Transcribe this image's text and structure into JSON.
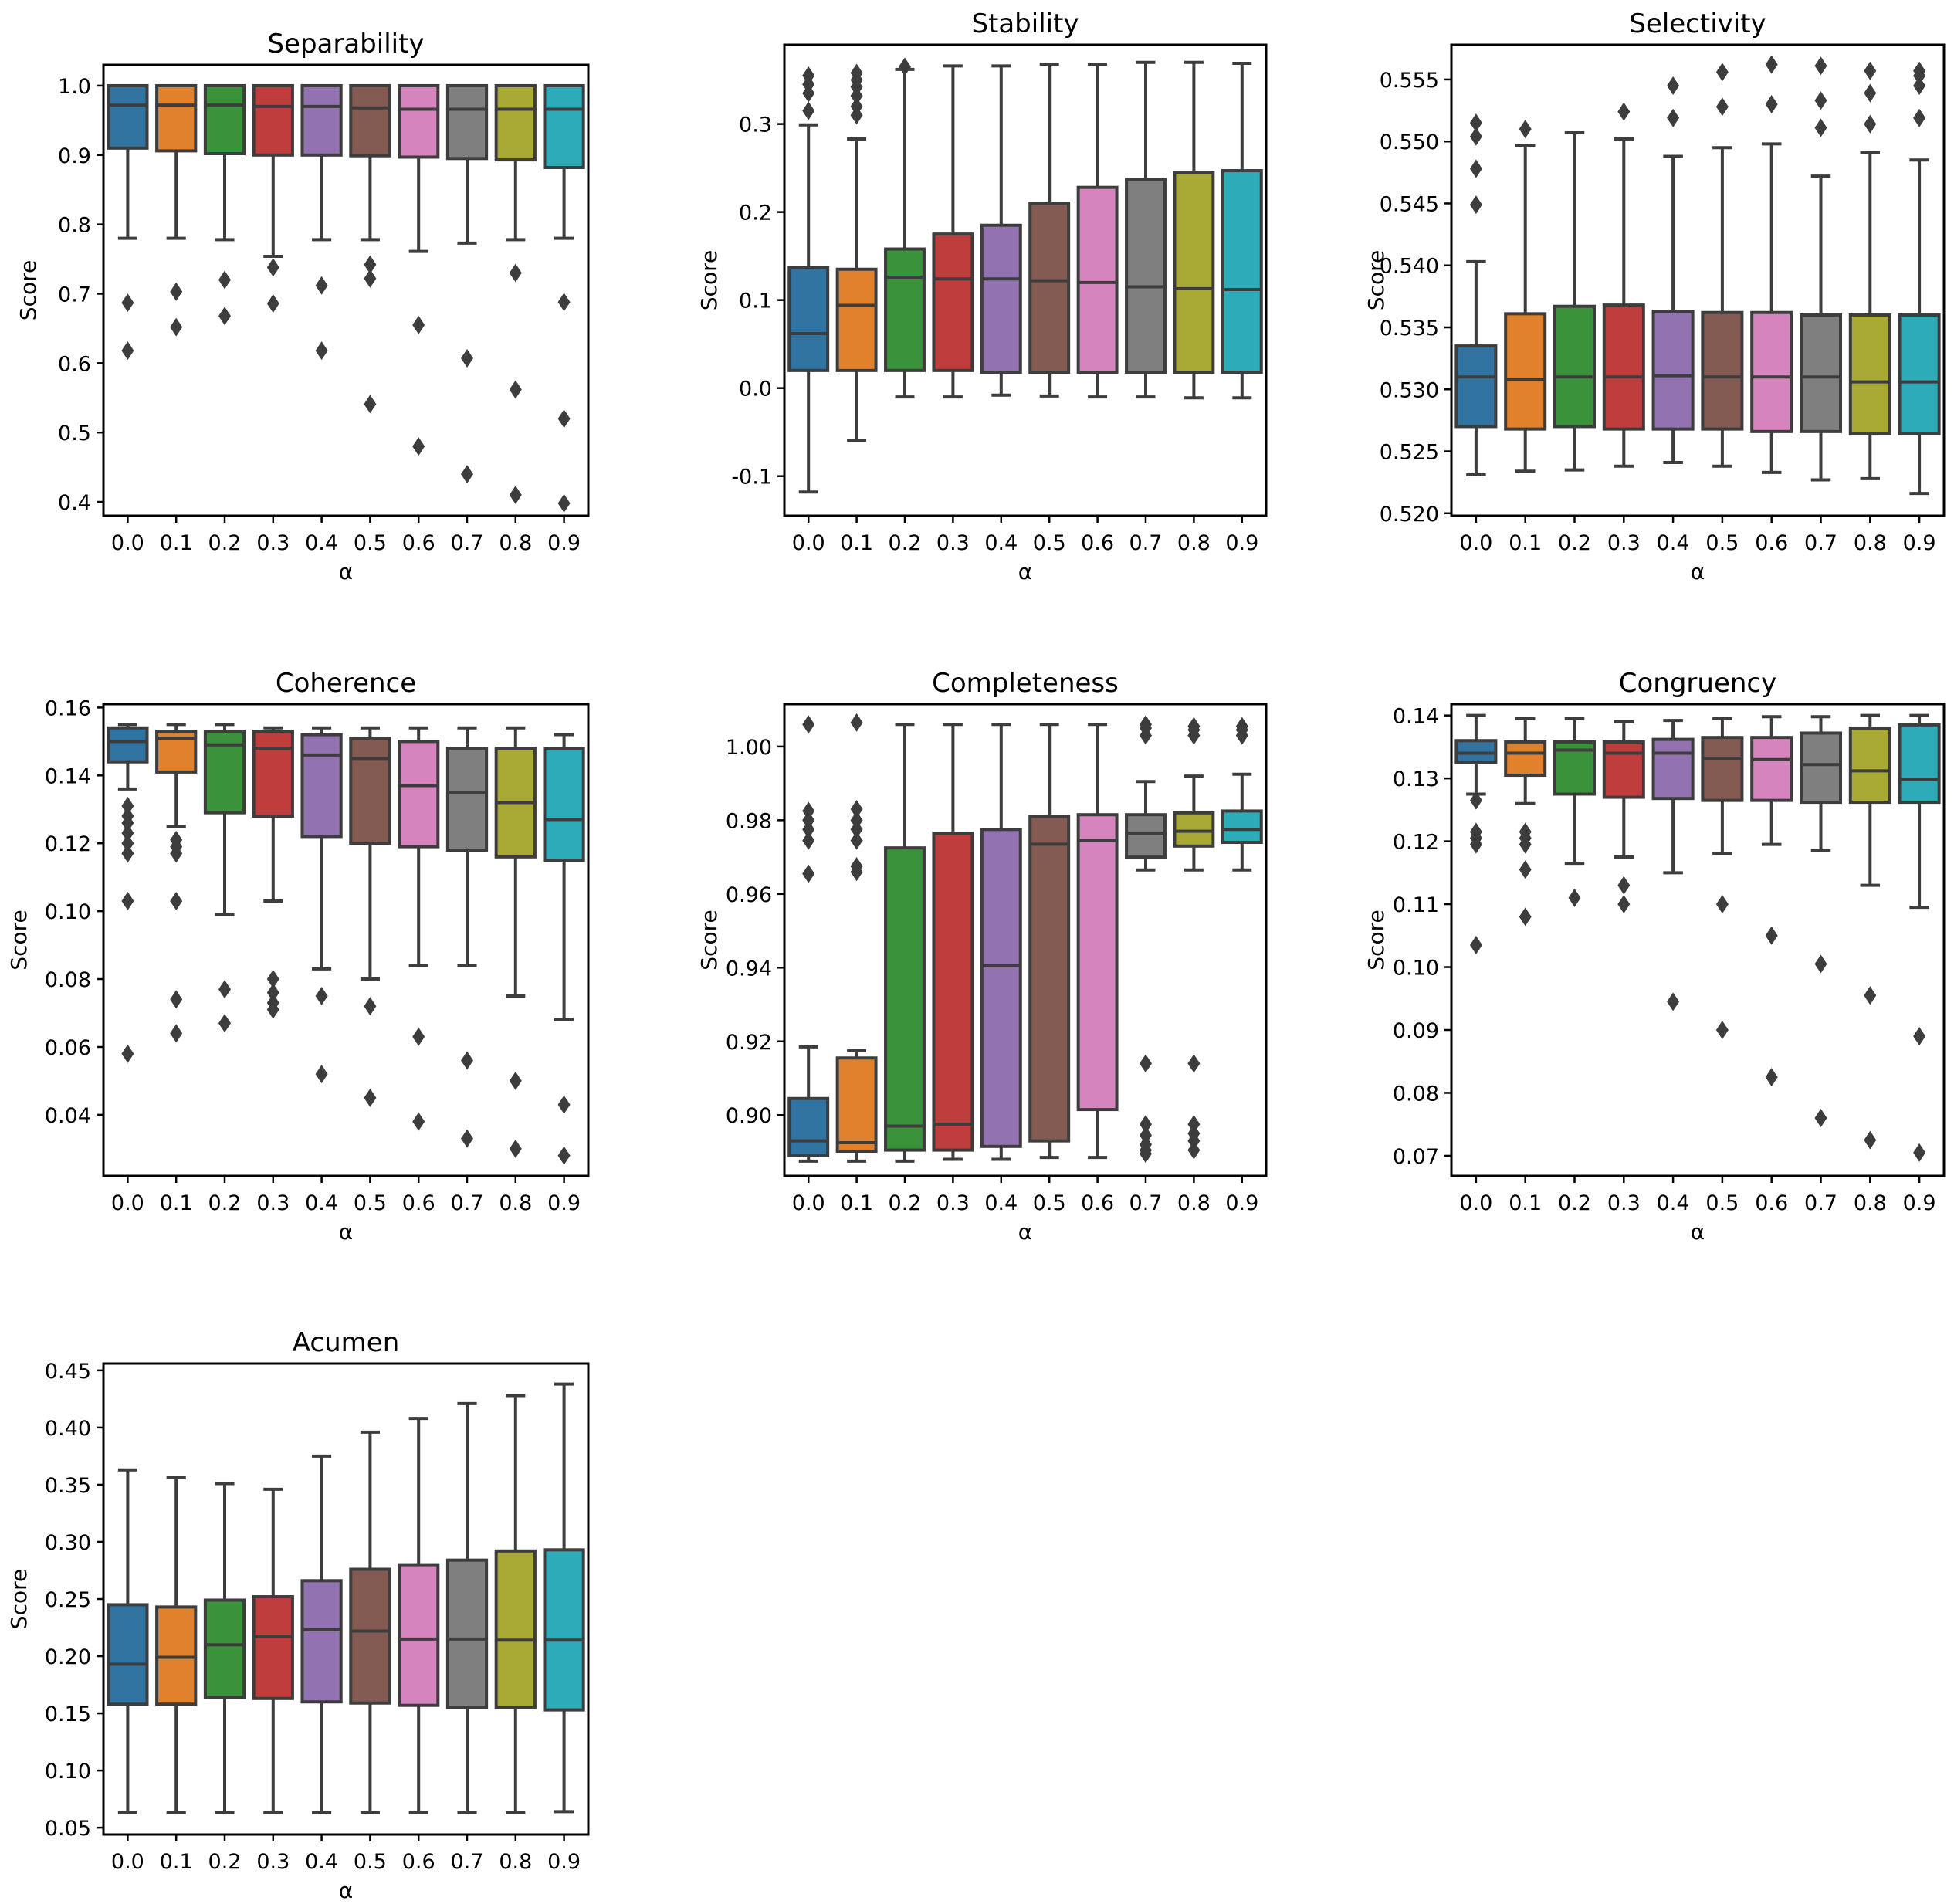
{
  "chart_data": [
    {
      "type": "box",
      "title": "Separability",
      "xlabel": "α",
      "ylabel": "Score",
      "categories": [
        "0.0",
        "0.1",
        "0.2",
        "0.3",
        "0.4",
        "0.5",
        "0.6",
        "0.7",
        "0.8",
        "0.9"
      ],
      "ylim": [
        0.38,
        1.03
      ],
      "yticks": [
        0.4,
        0.5,
        0.6,
        0.7,
        0.8,
        0.9,
        1.0
      ],
      "tick_decimals": 1,
      "boxes": [
        {
          "whislo": 0.78,
          "q1": 0.91,
          "med": 0.972,
          "q3": 1.0,
          "whishi": 1.0,
          "fliers": [
            0.687,
            0.618
          ]
        },
        {
          "whislo": 0.78,
          "q1": 0.906,
          "med": 0.972,
          "q3": 1.0,
          "whishi": 1.0,
          "fliers": [
            0.703,
            0.652
          ]
        },
        {
          "whislo": 0.778,
          "q1": 0.902,
          "med": 0.972,
          "q3": 1.0,
          "whishi": 1.0,
          "fliers": [
            0.72,
            0.668
          ]
        },
        {
          "whislo": 0.754,
          "q1": 0.9,
          "med": 0.97,
          "q3": 1.0,
          "whishi": 1.0,
          "fliers": [
            0.738,
            0.686
          ]
        },
        {
          "whislo": 0.778,
          "q1": 0.9,
          "med": 0.97,
          "q3": 1.0,
          "whishi": 1.0,
          "fliers": [
            0.712,
            0.618
          ]
        },
        {
          "whislo": 0.778,
          "q1": 0.899,
          "med": 0.968,
          "q3": 1.0,
          "whishi": 1.0,
          "fliers": [
            0.742,
            0.722,
            0.541
          ]
        },
        {
          "whislo": 0.761,
          "q1": 0.897,
          "med": 0.966,
          "q3": 1.0,
          "whishi": 1.0,
          "fliers": [
            0.655,
            0.48
          ]
        },
        {
          "whislo": 0.773,
          "q1": 0.895,
          "med": 0.966,
          "q3": 1.0,
          "whishi": 1.0,
          "fliers": [
            0.607,
            0.44
          ]
        },
        {
          "whislo": 0.778,
          "q1": 0.893,
          "med": 0.966,
          "q3": 1.0,
          "whishi": 1.0,
          "fliers": [
            0.73,
            0.562,
            0.41
          ]
        },
        {
          "whislo": 0.78,
          "q1": 0.882,
          "med": 0.966,
          "q3": 1.0,
          "whishi": 1.0,
          "fliers": [
            0.688,
            0.52,
            0.398
          ]
        }
      ]
    },
    {
      "type": "box",
      "title": "Stability",
      "xlabel": "α",
      "ylabel": "Score",
      "categories": [
        "0.0",
        "0.1",
        "0.2",
        "0.3",
        "0.4",
        "0.5",
        "0.6",
        "0.7",
        "0.8",
        "0.9"
      ],
      "ylim": [
        -0.145,
        0.39
      ],
      "yticks": [
        -0.1,
        0.0,
        0.1,
        0.2,
        0.3
      ],
      "tick_decimals": 1,
      "boxes": [
        {
          "whislo": -0.118,
          "q1": 0.02,
          "med": 0.062,
          "q3": 0.137,
          "whishi": 0.299,
          "fliers": [
            0.315,
            0.335,
            0.345,
            0.355
          ]
        },
        {
          "whislo": -0.059,
          "q1": 0.02,
          "med": 0.094,
          "q3": 0.135,
          "whishi": 0.283,
          "fliers": [
            0.31,
            0.32,
            0.332,
            0.342,
            0.35,
            0.358
          ]
        },
        {
          "whislo": -0.01,
          "q1": 0.02,
          "med": 0.126,
          "q3": 0.158,
          "whishi": 0.362,
          "fliers": [
            0.365
          ]
        },
        {
          "whislo": -0.01,
          "q1": 0.02,
          "med": 0.124,
          "q3": 0.175,
          "whishi": 0.366,
          "fliers": []
        },
        {
          "whislo": -0.008,
          "q1": 0.018,
          "med": 0.124,
          "q3": 0.185,
          "whishi": 0.366,
          "fliers": []
        },
        {
          "whislo": -0.009,
          "q1": 0.018,
          "med": 0.122,
          "q3": 0.21,
          "whishi": 0.368,
          "fliers": []
        },
        {
          "whislo": -0.01,
          "q1": 0.018,
          "med": 0.12,
          "q3": 0.228,
          "whishi": 0.368,
          "fliers": []
        },
        {
          "whislo": -0.01,
          "q1": 0.018,
          "med": 0.115,
          "q3": 0.237,
          "whishi": 0.37,
          "fliers": []
        },
        {
          "whislo": -0.011,
          "q1": 0.018,
          "med": 0.113,
          "q3": 0.245,
          "whishi": 0.37,
          "fliers": []
        },
        {
          "whislo": -0.011,
          "q1": 0.018,
          "med": 0.112,
          "q3": 0.247,
          "whishi": 0.369,
          "fliers": []
        }
      ]
    },
    {
      "type": "box",
      "title": "Selectivity",
      "xlabel": "α",
      "ylabel": "Score",
      "categories": [
        "0.0",
        "0.1",
        "0.2",
        "0.3",
        "0.4",
        "0.5",
        "0.6",
        "0.7",
        "0.8",
        "0.9"
      ],
      "ylim": [
        0.5198,
        0.5578
      ],
      "yticks": [
        0.52,
        0.525,
        0.53,
        0.535,
        0.54,
        0.545,
        0.55,
        0.555
      ],
      "tick_decimals": 3,
      "boxes": [
        {
          "whislo": 0.5231,
          "q1": 0.527,
          "med": 0.531,
          "q3": 0.5335,
          "whishi": 0.5403,
          "fliers": [
            0.5449,
            0.5478,
            0.5504,
            0.5515
          ]
        },
        {
          "whislo": 0.5234,
          "q1": 0.5268,
          "med": 0.5308,
          "q3": 0.5361,
          "whishi": 0.5497,
          "fliers": [
            0.551
          ]
        },
        {
          "whislo": 0.5235,
          "q1": 0.527,
          "med": 0.531,
          "q3": 0.5367,
          "whishi": 0.5507,
          "fliers": []
        },
        {
          "whislo": 0.5238,
          "q1": 0.5268,
          "med": 0.531,
          "q3": 0.5368,
          "whishi": 0.5502,
          "fliers": [
            0.5524
          ]
        },
        {
          "whislo": 0.5241,
          "q1": 0.5268,
          "med": 0.5311,
          "q3": 0.5363,
          "whishi": 0.5488,
          "fliers": [
            0.5519,
            0.5545
          ]
        },
        {
          "whislo": 0.5238,
          "q1": 0.5268,
          "med": 0.531,
          "q3": 0.5362,
          "whishi": 0.5495,
          "fliers": [
            0.5528,
            0.5556
          ]
        },
        {
          "whislo": 0.5233,
          "q1": 0.5266,
          "med": 0.531,
          "q3": 0.5362,
          "whishi": 0.5498,
          "fliers": [
            0.553,
            0.5562
          ]
        },
        {
          "whislo": 0.5227,
          "q1": 0.5266,
          "med": 0.531,
          "q3": 0.536,
          "whishi": 0.5472,
          "fliers": [
            0.5511,
            0.5533,
            0.5561
          ]
        },
        {
          "whislo": 0.5228,
          "q1": 0.5264,
          "med": 0.5306,
          "q3": 0.536,
          "whishi": 0.5491,
          "fliers": [
            0.5514,
            0.5539,
            0.5557
          ]
        },
        {
          "whislo": 0.5216,
          "q1": 0.5264,
          "med": 0.5306,
          "q3": 0.536,
          "whishi": 0.5485,
          "fliers": [
            0.5519,
            0.5545,
            0.5553,
            0.5557
          ]
        }
      ]
    },
    {
      "type": "box",
      "title": "Coherence",
      "xlabel": "α",
      "ylabel": "Score",
      "categories": [
        "0.0",
        "0.1",
        "0.2",
        "0.3",
        "0.4",
        "0.5",
        "0.6",
        "0.7",
        "0.8",
        "0.9"
      ],
      "ylim": [
        0.022,
        0.161
      ],
      "yticks": [
        0.04,
        0.06,
        0.08,
        0.1,
        0.12,
        0.14,
        0.16
      ],
      "tick_decimals": 2,
      "boxes": [
        {
          "whislo": 0.136,
          "q1": 0.144,
          "med": 0.15,
          "q3": 0.154,
          "whishi": 0.155,
          "fliers": [
            0.131,
            0.128,
            0.126,
            0.123,
            0.12,
            0.117,
            0.103,
            0.058
          ]
        },
        {
          "whislo": 0.125,
          "q1": 0.141,
          "med": 0.151,
          "q3": 0.153,
          "whishi": 0.155,
          "fliers": [
            0.121,
            0.119,
            0.117,
            0.103,
            0.074,
            0.064
          ]
        },
        {
          "whislo": 0.099,
          "q1": 0.129,
          "med": 0.149,
          "q3": 0.153,
          "whishi": 0.155,
          "fliers": [
            0.077,
            0.067
          ]
        },
        {
          "whislo": 0.103,
          "q1": 0.128,
          "med": 0.148,
          "q3": 0.153,
          "whishi": 0.154,
          "fliers": [
            0.08,
            0.076,
            0.073,
            0.071
          ]
        },
        {
          "whislo": 0.083,
          "q1": 0.122,
          "med": 0.146,
          "q3": 0.152,
          "whishi": 0.154,
          "fliers": [
            0.075,
            0.052
          ]
        },
        {
          "whislo": 0.08,
          "q1": 0.12,
          "med": 0.145,
          "q3": 0.151,
          "whishi": 0.154,
          "fliers": [
            0.072,
            0.045
          ]
        },
        {
          "whislo": 0.084,
          "q1": 0.119,
          "med": 0.137,
          "q3": 0.15,
          "whishi": 0.154,
          "fliers": [
            0.063,
            0.038
          ]
        },
        {
          "whislo": 0.084,
          "q1": 0.118,
          "med": 0.135,
          "q3": 0.148,
          "whishi": 0.154,
          "fliers": [
            0.056,
            0.033
          ]
        },
        {
          "whislo": 0.075,
          "q1": 0.116,
          "med": 0.132,
          "q3": 0.148,
          "whishi": 0.154,
          "fliers": [
            0.05,
            0.03
          ]
        },
        {
          "whislo": 0.068,
          "q1": 0.115,
          "med": 0.127,
          "q3": 0.148,
          "whishi": 0.152,
          "fliers": [
            0.043,
            0.028
          ]
        }
      ]
    },
    {
      "type": "box",
      "title": "Completeness",
      "xlabel": "α",
      "ylabel": "Score",
      "categories": [
        "0.0",
        "0.1",
        "0.2",
        "0.3",
        "0.4",
        "0.5",
        "0.6",
        "0.7",
        "0.8",
        "0.9"
      ],
      "ylim": [
        0.8835,
        1.0115
      ],
      "yticks": [
        0.9,
        0.92,
        0.94,
        0.96,
        0.98,
        1.0
      ],
      "tick_decimals": 2,
      "boxes": [
        {
          "whislo": 0.8875,
          "q1": 0.889,
          "med": 0.893,
          "q3": 0.9045,
          "whishi": 0.9185,
          "fliers": [
            0.9655,
            0.9745,
            0.9775,
            0.98,
            0.9825,
            1.006
          ]
        },
        {
          "whislo": 0.8875,
          "q1": 0.8902,
          "med": 0.8925,
          "q3": 0.9155,
          "whishi": 0.9175,
          "fliers": [
            0.966,
            0.9675,
            0.9745,
            0.9775,
            0.98,
            0.983,
            1.0065
          ]
        },
        {
          "whislo": 0.8875,
          "q1": 0.8905,
          "med": 0.897,
          "q3": 0.9725,
          "whishi": 1.006,
          "fliers": []
        },
        {
          "whislo": 0.888,
          "q1": 0.8905,
          "med": 0.8975,
          "q3": 0.9765,
          "whishi": 1.006,
          "fliers": []
        },
        {
          "whislo": 0.888,
          "q1": 0.8915,
          "med": 0.9405,
          "q3": 0.9775,
          "whishi": 1.006,
          "fliers": []
        },
        {
          "whislo": 0.8885,
          "q1": 0.893,
          "med": 0.9735,
          "q3": 0.981,
          "whishi": 1.006,
          "fliers": []
        },
        {
          "whislo": 0.8885,
          "q1": 0.9015,
          "med": 0.9745,
          "q3": 0.9815,
          "whishi": 1.006,
          "fliers": []
        },
        {
          "whislo": 0.9665,
          "q1": 0.97,
          "med": 0.9765,
          "q3": 0.9815,
          "whishi": 0.9905,
          "fliers": [
            1.006,
            1.005,
            1.003,
            0.914,
            0.8975,
            0.8945,
            0.892,
            0.8905,
            0.8895
          ]
        },
        {
          "whislo": 0.9665,
          "q1": 0.973,
          "med": 0.977,
          "q3": 0.982,
          "whishi": 0.992,
          "fliers": [
            1.0055,
            1.0045,
            1.003,
            0.914,
            0.8975,
            0.895,
            0.893,
            0.8905
          ]
        },
        {
          "whislo": 0.9665,
          "q1": 0.974,
          "med": 0.9775,
          "q3": 0.9825,
          "whishi": 0.9925,
          "fliers": [
            1.0055,
            1.0045,
            1.003
          ]
        }
      ]
    },
    {
      "type": "box",
      "title": "Congruency",
      "xlabel": "α",
      "ylabel": "Score",
      "categories": [
        "0.0",
        "0.1",
        "0.2",
        "0.3",
        "0.4",
        "0.5",
        "0.6",
        "0.7",
        "0.8",
        "0.9"
      ],
      "ylim": [
        0.0668,
        0.1418
      ],
      "yticks": [
        0.07,
        0.08,
        0.09,
        0.1,
        0.11,
        0.12,
        0.13,
        0.14
      ],
      "tick_decimals": 2,
      "boxes": [
        {
          "whislo": 0.1275,
          "q1": 0.1325,
          "med": 0.134,
          "q3": 0.136,
          "whishi": 0.14,
          "fliers": [
            0.1265,
            0.1215,
            0.1205,
            0.1195,
            0.1035
          ]
        },
        {
          "whislo": 0.126,
          "q1": 0.1305,
          "med": 0.134,
          "q3": 0.1358,
          "whishi": 0.1395,
          "fliers": [
            0.1215,
            0.1205,
            0.1195,
            0.1155,
            0.108
          ]
        },
        {
          "whislo": 0.1165,
          "q1": 0.1275,
          "med": 0.1345,
          "q3": 0.1358,
          "whishi": 0.1395,
          "fliers": [
            0.111
          ]
        },
        {
          "whislo": 0.1175,
          "q1": 0.127,
          "med": 0.134,
          "q3": 0.1358,
          "whishi": 0.139,
          "fliers": [
            0.113,
            0.11
          ]
        },
        {
          "whislo": 0.115,
          "q1": 0.1268,
          "med": 0.134,
          "q3": 0.1362,
          "whishi": 0.1392,
          "fliers": [
            0.0945
          ]
        },
        {
          "whislo": 0.118,
          "q1": 0.1265,
          "med": 0.1332,
          "q3": 0.1365,
          "whishi": 0.1395,
          "fliers": [
            0.11,
            0.09
          ]
        },
        {
          "whislo": 0.1195,
          "q1": 0.1265,
          "med": 0.133,
          "q3": 0.1365,
          "whishi": 0.1398,
          "fliers": [
            0.105,
            0.0825
          ]
        },
        {
          "whislo": 0.1185,
          "q1": 0.1262,
          "med": 0.1322,
          "q3": 0.1372,
          "whishi": 0.1398,
          "fliers": [
            0.1005,
            0.076
          ]
        },
        {
          "whislo": 0.113,
          "q1": 0.1262,
          "med": 0.1312,
          "q3": 0.138,
          "whishi": 0.14,
          "fliers": [
            0.0955,
            0.0725
          ]
        },
        {
          "whislo": 0.1095,
          "q1": 0.1262,
          "med": 0.1298,
          "q3": 0.1385,
          "whishi": 0.14,
          "fliers": [
            0.089,
            0.0705
          ]
        }
      ]
    },
    {
      "type": "box",
      "title": "Acumen",
      "xlabel": "α",
      "ylabel": "Score",
      "categories": [
        "0.0",
        "0.1",
        "0.2",
        "0.3",
        "0.4",
        "0.5",
        "0.6",
        "0.7",
        "0.8",
        "0.9"
      ],
      "ylim": [
        0.044,
        0.456
      ],
      "yticks": [
        0.05,
        0.1,
        0.15,
        0.2,
        0.25,
        0.3,
        0.35,
        0.4,
        0.45
      ],
      "tick_decimals": 2,
      "boxes": [
        {
          "whislo": 0.063,
          "q1": 0.158,
          "med": 0.193,
          "q3": 0.245,
          "whishi": 0.363,
          "fliers": []
        },
        {
          "whislo": 0.063,
          "q1": 0.158,
          "med": 0.199,
          "q3": 0.243,
          "whishi": 0.356,
          "fliers": []
        },
        {
          "whislo": 0.063,
          "q1": 0.164,
          "med": 0.21,
          "q3": 0.249,
          "whishi": 0.351,
          "fliers": []
        },
        {
          "whislo": 0.063,
          "q1": 0.163,
          "med": 0.217,
          "q3": 0.252,
          "whishi": 0.346,
          "fliers": []
        },
        {
          "whislo": 0.063,
          "q1": 0.16,
          "med": 0.223,
          "q3": 0.266,
          "whishi": 0.375,
          "fliers": []
        },
        {
          "whislo": 0.063,
          "q1": 0.159,
          "med": 0.222,
          "q3": 0.276,
          "whishi": 0.396,
          "fliers": []
        },
        {
          "whislo": 0.063,
          "q1": 0.157,
          "med": 0.215,
          "q3": 0.28,
          "whishi": 0.408,
          "fliers": []
        },
        {
          "whislo": 0.063,
          "q1": 0.155,
          "med": 0.215,
          "q3": 0.284,
          "whishi": 0.421,
          "fliers": []
        },
        {
          "whislo": 0.063,
          "q1": 0.155,
          "med": 0.214,
          "q3": 0.292,
          "whishi": 0.428,
          "fliers": []
        },
        {
          "whislo": 0.064,
          "q1": 0.153,
          "med": 0.214,
          "q3": 0.293,
          "whishi": 0.438,
          "fliers": []
        }
      ]
    }
  ],
  "colors": [
    "#3274a1",
    "#e1812c",
    "#3a923a",
    "#c03d3e",
    "#9372b2",
    "#845b53",
    "#d684bd",
    "#7f7f7f",
    "#a9aa35",
    "#2eabb8"
  ],
  "line_color": "#3d3d3d"
}
